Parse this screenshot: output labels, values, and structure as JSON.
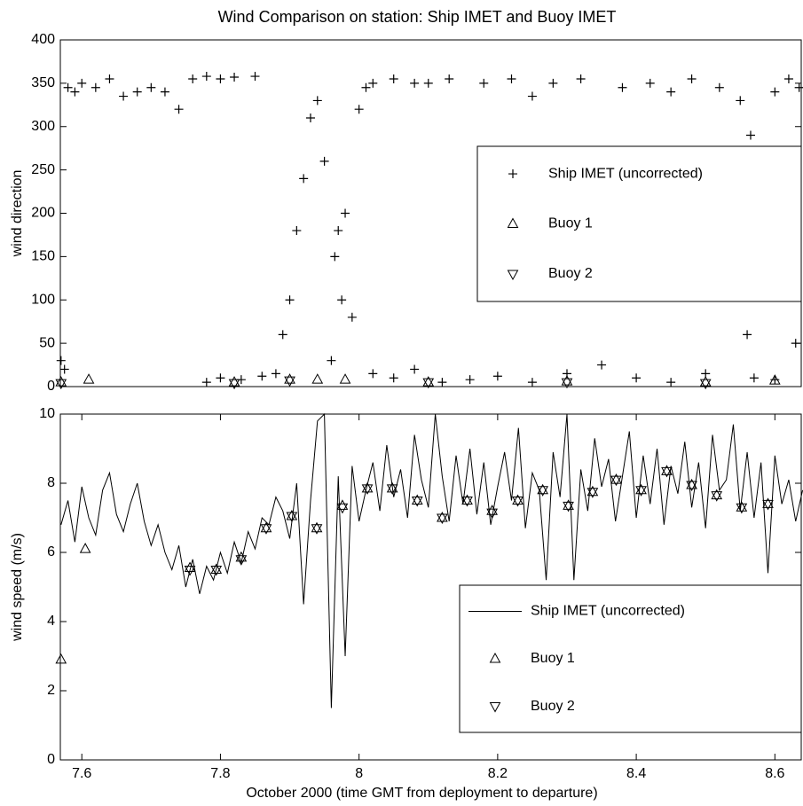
{
  "chart_data": [
    {
      "type": "scatter",
      "title": "Wind Comparison on station: Ship IMET and Buoy IMET",
      "ylabel": "wind direction",
      "xlim": [
        7.569,
        8.638
      ],
      "ylim": [
        0,
        400
      ],
      "yticks": [
        0,
        50,
        100,
        150,
        200,
        250,
        300,
        350,
        400
      ],
      "legend": "center right",
      "series": [
        {
          "name": "Ship IMET (uncorrected)",
          "marker": "plus",
          "color": "#000000",
          "x": [
            7.57,
            7.575,
            7.58,
            7.59,
            7.6,
            7.62,
            7.64,
            7.66,
            7.68,
            7.7,
            7.72,
            7.74,
            7.76,
            7.78,
            7.8,
            7.82,
            7.85,
            7.78,
            7.8,
            7.83,
            7.86,
            7.88,
            7.89,
            7.9,
            7.91,
            7.92,
            7.93,
            7.94,
            7.95,
            7.96,
            7.965,
            7.97,
            7.975,
            7.98,
            7.99,
            8.0,
            8.01,
            8.02,
            8.02,
            8.05,
            8.05,
            8.08,
            8.08,
            8.1,
            8.12,
            8.13,
            8.16,
            8.18,
            8.2,
            8.22,
            8.25,
            8.25,
            8.28,
            8.3,
            8.32,
            8.35,
            8.38,
            8.4,
            8.42,
            8.45,
            8.45,
            8.48,
            8.5,
            8.52,
            8.55,
            8.56,
            8.565,
            8.57,
            8.6,
            8.6,
            8.62,
            8.63,
            8.635
          ],
          "values": [
            30,
            20,
            345,
            340,
            350,
            345,
            355,
            335,
            340,
            345,
            340,
            320,
            355,
            358,
            355,
            357,
            358,
            5,
            10,
            8,
            12,
            15,
            60,
            100,
            180,
            240,
            310,
            330,
            260,
            30,
            150,
            180,
            100,
            200,
            80,
            320,
            345,
            350,
            15,
            355,
            10,
            350,
            20,
            350,
            5,
            355,
            8,
            350,
            12,
            355,
            335,
            5,
            350,
            15,
            355,
            25,
            345,
            10,
            350,
            340,
            5,
            355,
            15,
            345,
            330,
            60,
            290,
            10,
            340,
            8,
            355,
            50,
            345
          ]
        },
        {
          "name": "Buoy 1",
          "marker": "triangle-up",
          "color": "#000000",
          "x": [
            7.57,
            7.61,
            7.82,
            7.9,
            7.94,
            7.98,
            8.1,
            8.3,
            8.5,
            8.6
          ],
          "values": [
            5,
            8,
            5,
            8,
            8,
            8,
            5,
            6,
            5,
            7
          ]
        },
        {
          "name": "Buoy 2",
          "marker": "triangle-down",
          "color": "#000000",
          "x": [
            7.57,
            7.82,
            7.9,
            8.1,
            8.3,
            8.5
          ],
          "values": [
            4,
            4,
            7,
            5,
            5,
            4
          ]
        }
      ]
    },
    {
      "type": "line",
      "ylabel": "wind speed (m/s)",
      "xlabel": "October 2000 (time GMT from deployment to departure)",
      "xlim": [
        7.569,
        8.638
      ],
      "ylim": [
        0,
        10
      ],
      "yticks": [
        0,
        2,
        4,
        6,
        8,
        10
      ],
      "xticks": [
        7.6,
        7.8,
        {
          "value": 8,
          "label": "8"
        },
        8.2,
        8.4,
        8.6
      ],
      "legend": "lower right",
      "series": [
        {
          "name": "Ship IMET (uncorrected)",
          "marker": "line",
          "color": "#000000",
          "x": [
            7.57,
            7.58,
            7.59,
            7.6,
            7.61,
            7.62,
            7.63,
            7.64,
            7.65,
            7.66,
            7.67,
            7.68,
            7.69,
            7.7,
            7.71,
            7.72,
            7.73,
            7.74,
            7.75,
            7.76,
            7.77,
            7.78,
            7.79,
            7.8,
            7.81,
            7.82,
            7.83,
            7.84,
            7.85,
            7.86,
            7.87,
            7.88,
            7.89,
            7.9,
            7.91,
            7.92,
            7.93,
            7.94,
            7.95,
            7.96,
            7.97,
            7.98,
            7.99,
            8.0,
            8.01,
            8.02,
            8.03,
            8.04,
            8.05,
            8.06,
            8.07,
            8.08,
            8.09,
            8.1,
            8.11,
            8.12,
            8.13,
            8.14,
            8.15,
            8.16,
            8.17,
            8.18,
            8.19,
            8.2,
            8.21,
            8.22,
            8.23,
            8.24,
            8.25,
            8.26,
            8.27,
            8.28,
            8.29,
            8.3,
            8.31,
            8.32,
            8.33,
            8.34,
            8.35,
            8.36,
            8.37,
            8.38,
            8.39,
            8.4,
            8.41,
            8.42,
            8.43,
            8.44,
            8.45,
            8.46,
            8.47,
            8.48,
            8.49,
            8.5,
            8.51,
            8.52,
            8.53,
            8.54,
            8.55,
            8.56,
            8.57,
            8.58,
            8.59,
            8.6,
            8.61,
            8.62,
            8.63,
            8.64
          ],
          "values": [
            6.8,
            7.5,
            6.3,
            7.9,
            7.0,
            6.5,
            7.8,
            8.3,
            7.1,
            6.6,
            7.4,
            8.0,
            6.9,
            6.2,
            6.8,
            6.0,
            5.5,
            6.2,
            5.0,
            5.8,
            4.8,
            5.6,
            5.2,
            6.0,
            5.4,
            6.3,
            5.7,
            6.6,
            6.1,
            7.0,
            6.8,
            7.6,
            7.2,
            6.4,
            8.0,
            4.5,
            7.5,
            9.8,
            10,
            1.5,
            8.2,
            3.0,
            8.5,
            6.9,
            7.8,
            8.6,
            7.2,
            9.1,
            7.6,
            8.4,
            7.0,
            9.4,
            8.1,
            7.3,
            10,
            8.2,
            6.9,
            8.8,
            7.4,
            9.0,
            7.1,
            8.6,
            6.8,
            7.9,
            8.9,
            7.5,
            9.6,
            6.7,
            8.3,
            7.8,
            5.2,
            8.9,
            7.6,
            10,
            5.2,
            8.4,
            7.2,
            9.3,
            7.9,
            8.7,
            6.9,
            8.2,
            9.5,
            7.0,
            8.8,
            7.4,
            9.0,
            6.8,
            8.5,
            7.7,
            9.2,
            7.3,
            8.6,
            6.7,
            9.4,
            7.8,
            8.1,
            9.7,
            7.2,
            8.9,
            7.0,
            8.6,
            5.4,
            8.8,
            7.4,
            8.1,
            6.9,
            7.8
          ]
        },
        {
          "name": "Buoy 1",
          "marker": "triangle-up",
          "color": "#000000",
          "x": [
            7.57,
            7.605,
            7.756,
            7.794,
            7.83,
            7.866,
            7.903,
            7.939,
            7.976,
            8.012,
            8.048,
            8.084,
            8.12,
            8.156,
            8.192,
            8.229,
            8.265,
            8.302,
            8.337,
            8.371,
            8.407,
            8.444,
            8.48,
            8.516,
            8.552,
            8.59
          ],
          "values": [
            2.9,
            6.1,
            5.55,
            5.5,
            5.85,
            6.7,
            7.05,
            6.7,
            7.35,
            7.85,
            7.85,
            7.5,
            7.0,
            7.5,
            7.2,
            7.5,
            7.8,
            7.35,
            7.75,
            8.1,
            7.8,
            8.35,
            7.95,
            7.65,
            7.3,
            7.4
          ]
        },
        {
          "name": "Buoy 2",
          "marker": "triangle-down",
          "color": "#000000",
          "x": [
            7.756,
            7.794,
            7.83,
            7.866,
            7.903,
            7.939,
            7.976,
            8.012,
            8.048,
            8.084,
            8.12,
            8.156,
            8.192,
            8.229,
            8.265,
            8.302,
            8.337,
            8.371,
            8.407,
            8.444,
            8.48,
            8.516,
            8.552,
            8.59
          ],
          "values": [
            5.5,
            5.5,
            5.8,
            6.7,
            7.05,
            6.7,
            7.3,
            7.85,
            7.85,
            7.5,
            7.0,
            7.5,
            7.15,
            7.5,
            7.8,
            7.35,
            7.75,
            8.1,
            7.8,
            8.35,
            7.95,
            7.65,
            7.3,
            7.4
          ]
        }
      ]
    }
  ]
}
